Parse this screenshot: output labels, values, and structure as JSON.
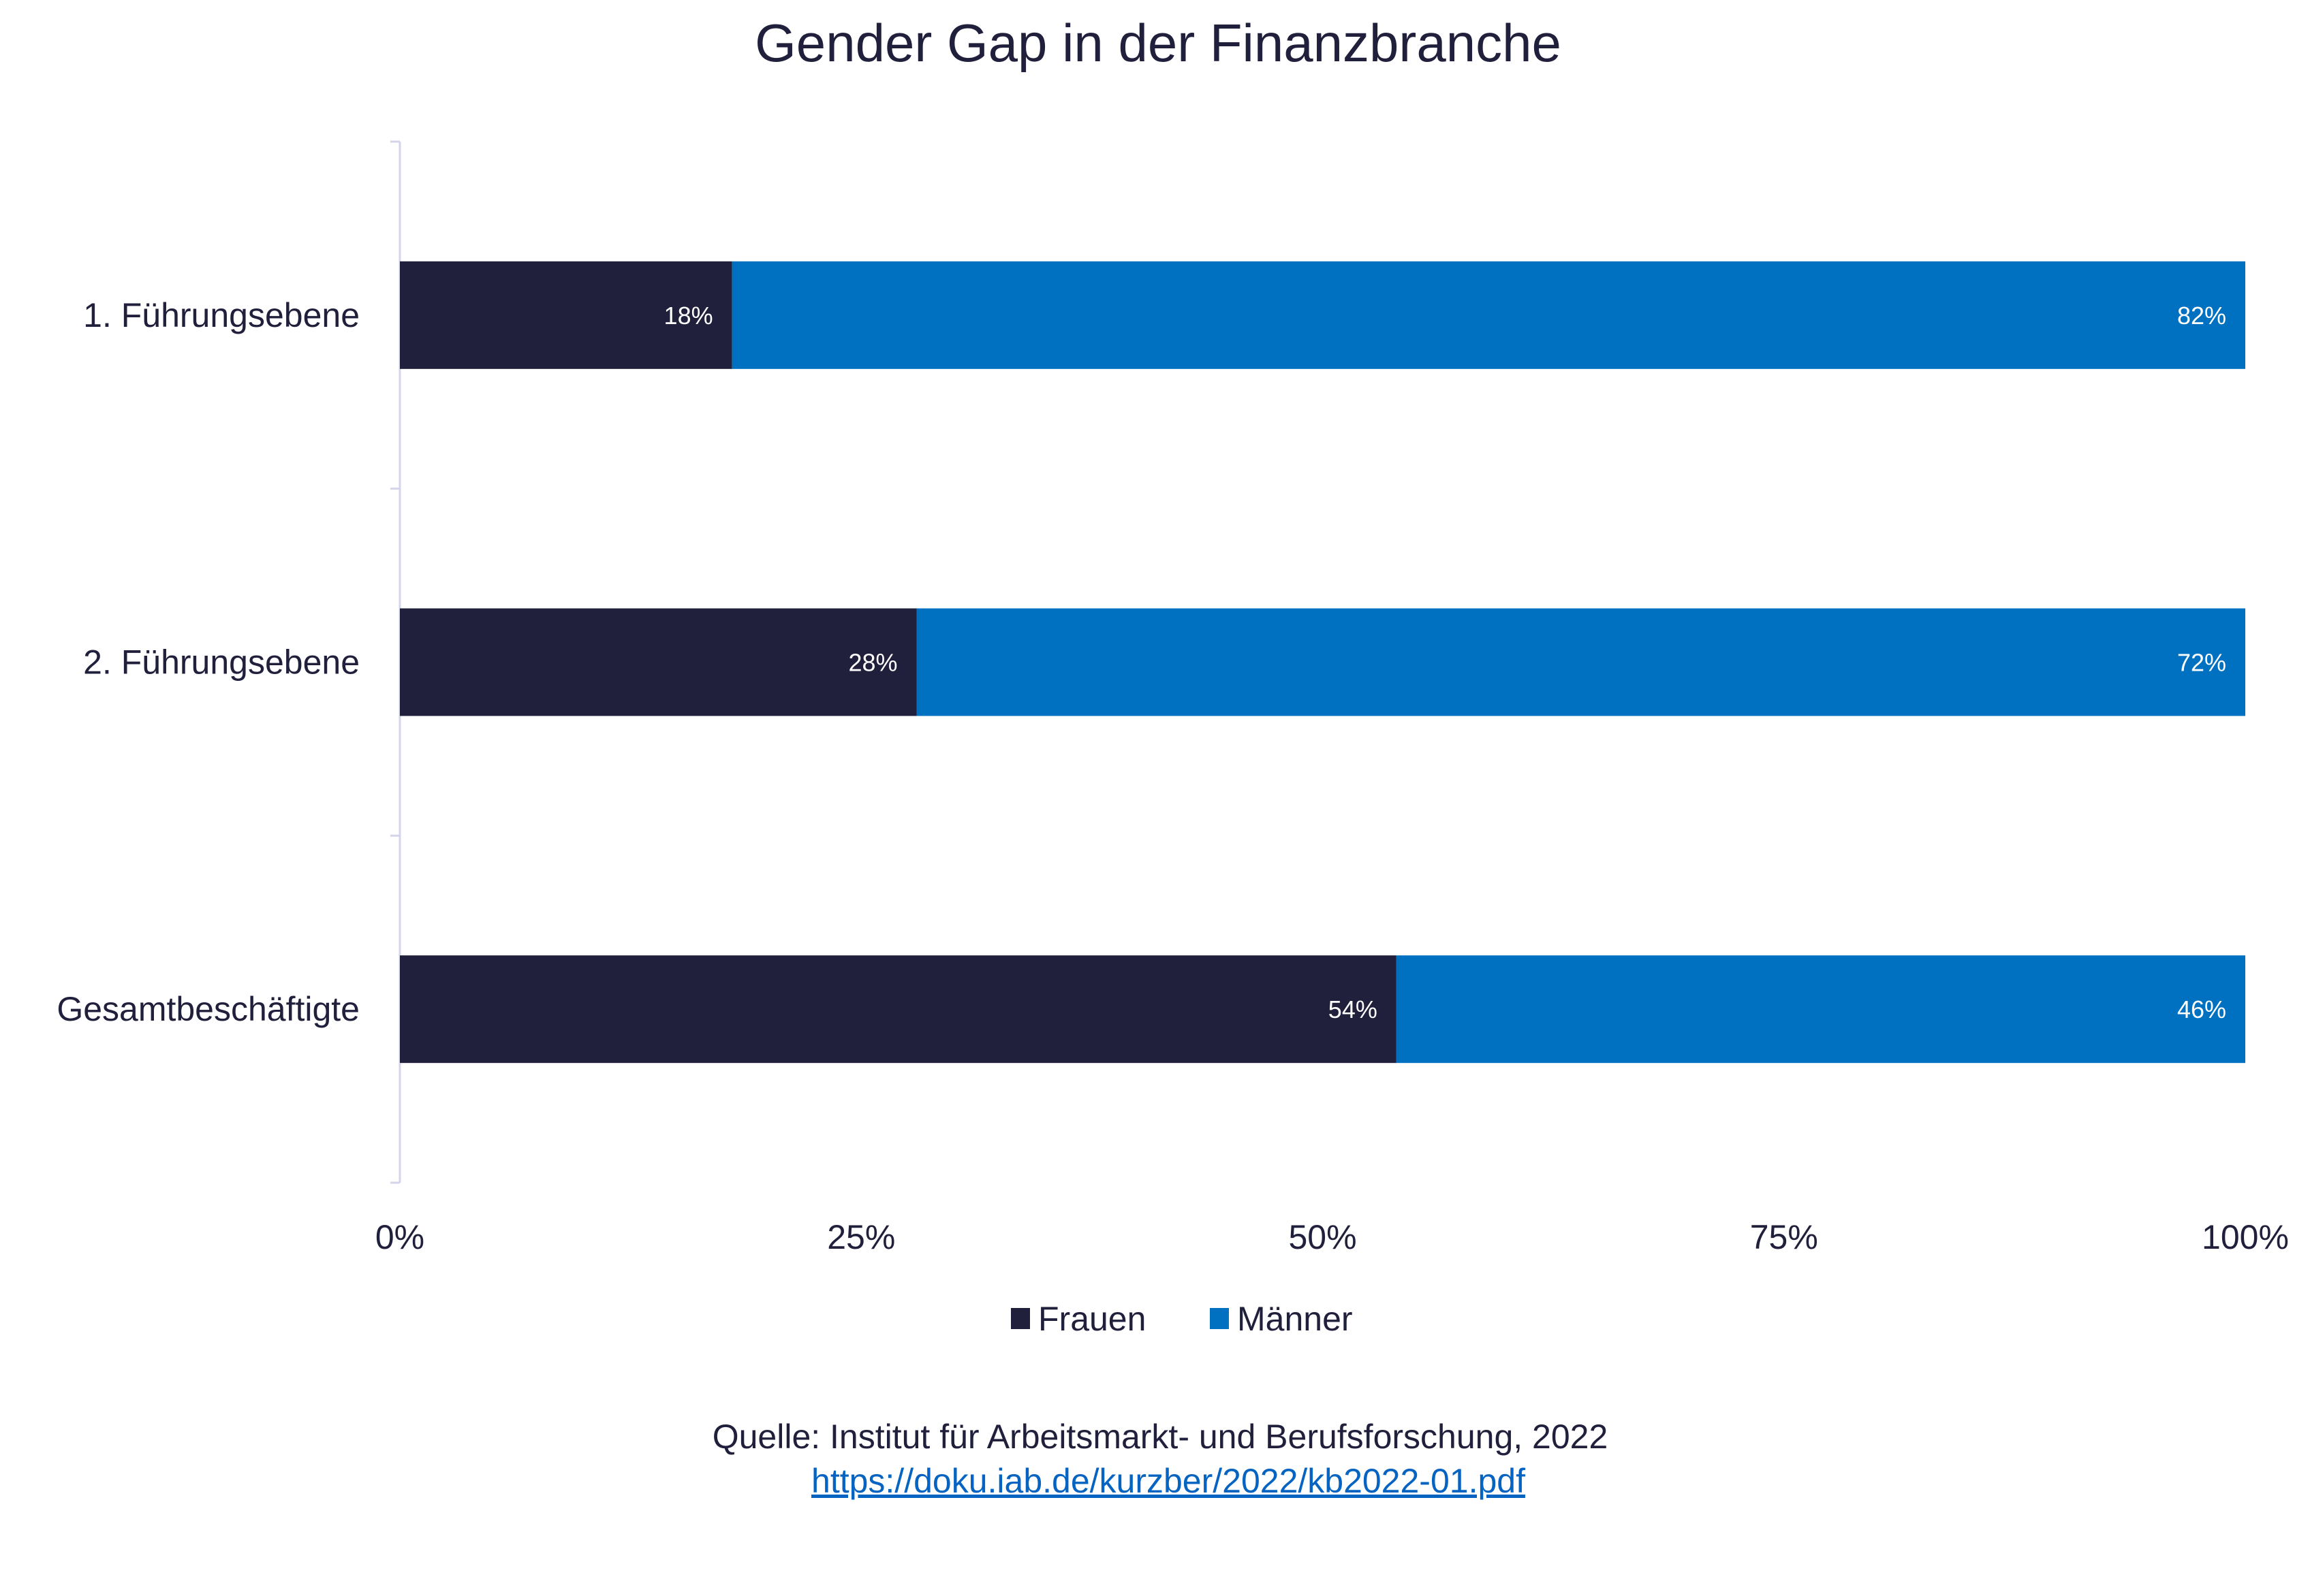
{
  "chart_data": {
    "type": "bar",
    "orientation": "horizontal",
    "stacked": true,
    "title": "Gender Gap in der Finanzbranche",
    "categories": [
      "1. Führungsebene",
      "2. Führungsebene",
      "Gesamtbeschäftigte"
    ],
    "series": [
      {
        "name": "Frauen",
        "values": [
          18,
          28,
          54
        ],
        "labels": [
          "18%",
          "28%",
          "54%"
        ],
        "color": "#20203c"
      },
      {
        "name": "Männer",
        "values": [
          82,
          72,
          46
        ],
        "labels": [
          "82%",
          "72%",
          "46%"
        ],
        "color": "#0070c0"
      }
    ],
    "xlim": [
      0,
      100
    ],
    "x_ticks": [
      0,
      25,
      50,
      75,
      100
    ],
    "x_tick_labels": [
      "0%",
      "25%",
      "50%",
      "75%",
      "100%"
    ],
    "xlabel": "",
    "ylabel": "",
    "grid": false,
    "legend_position": "bottom"
  },
  "footer": {
    "source": "Quelle: Institut für Arbeitsmarkt- und Berufsforschung, 2022",
    "link": "https://doku.iab.de/kurzber/2022/kb2022-01.pdf"
  },
  "colors": {
    "text": "#20203c",
    "axis": "#d4d4ea",
    "link": "#0563c1"
  }
}
